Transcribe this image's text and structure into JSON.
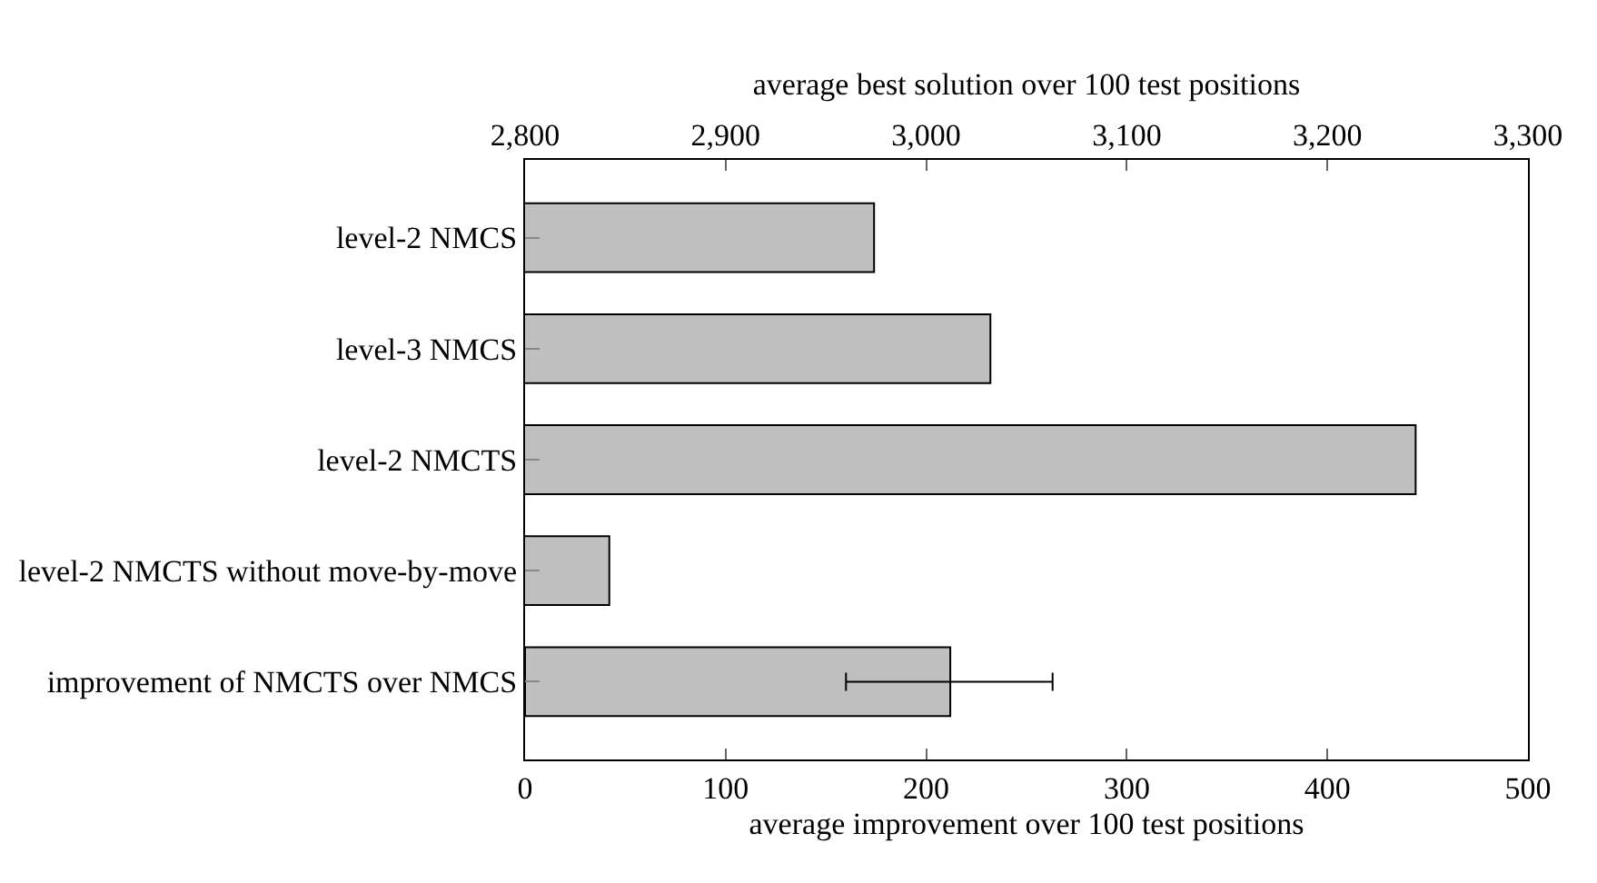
{
  "chart_data": {
    "type": "bar",
    "orientation": "horizontal",
    "xlabel": "average improvement over 100 test positions",
    "x2label": "average best solution over 100 test positions",
    "categories": [
      "level-2 NMCS",
      "level-3 NMCS",
      "level-2 NMCTS",
      "level-2 NMCTS without move-by-move",
      "improvement of NMCTS over NMCS"
    ],
    "series": [
      {
        "axis": "x2",
        "color": "#bfbfbf",
        "values": [
          2974,
          3032,
          3244,
          2842,
          null
        ]
      },
      {
        "color": "#bfbfbf",
        "values": [
          null,
          null,
          null,
          null,
          212
        ],
        "errors": [
          null,
          null,
          null,
          null,
          [
            160,
            263
          ]
        ]
      }
    ],
    "xlim": [
      0,
      500
    ],
    "xticks": [
      0,
      100,
      200,
      300,
      400,
      500
    ],
    "x2lim": [
      2800,
      3300
    ],
    "x2ticks": [
      {
        "value": 2800,
        "label": "2,800"
      },
      {
        "value": 2900,
        "label": "2,900"
      },
      {
        "value": 3000,
        "label": "3,000"
      },
      {
        "value": 3100,
        "label": "3,100"
      },
      {
        "value": 3200,
        "label": "3,200"
      },
      {
        "value": 3300,
        "label": "3,300"
      }
    ],
    "tick_labels": "xy"
  }
}
